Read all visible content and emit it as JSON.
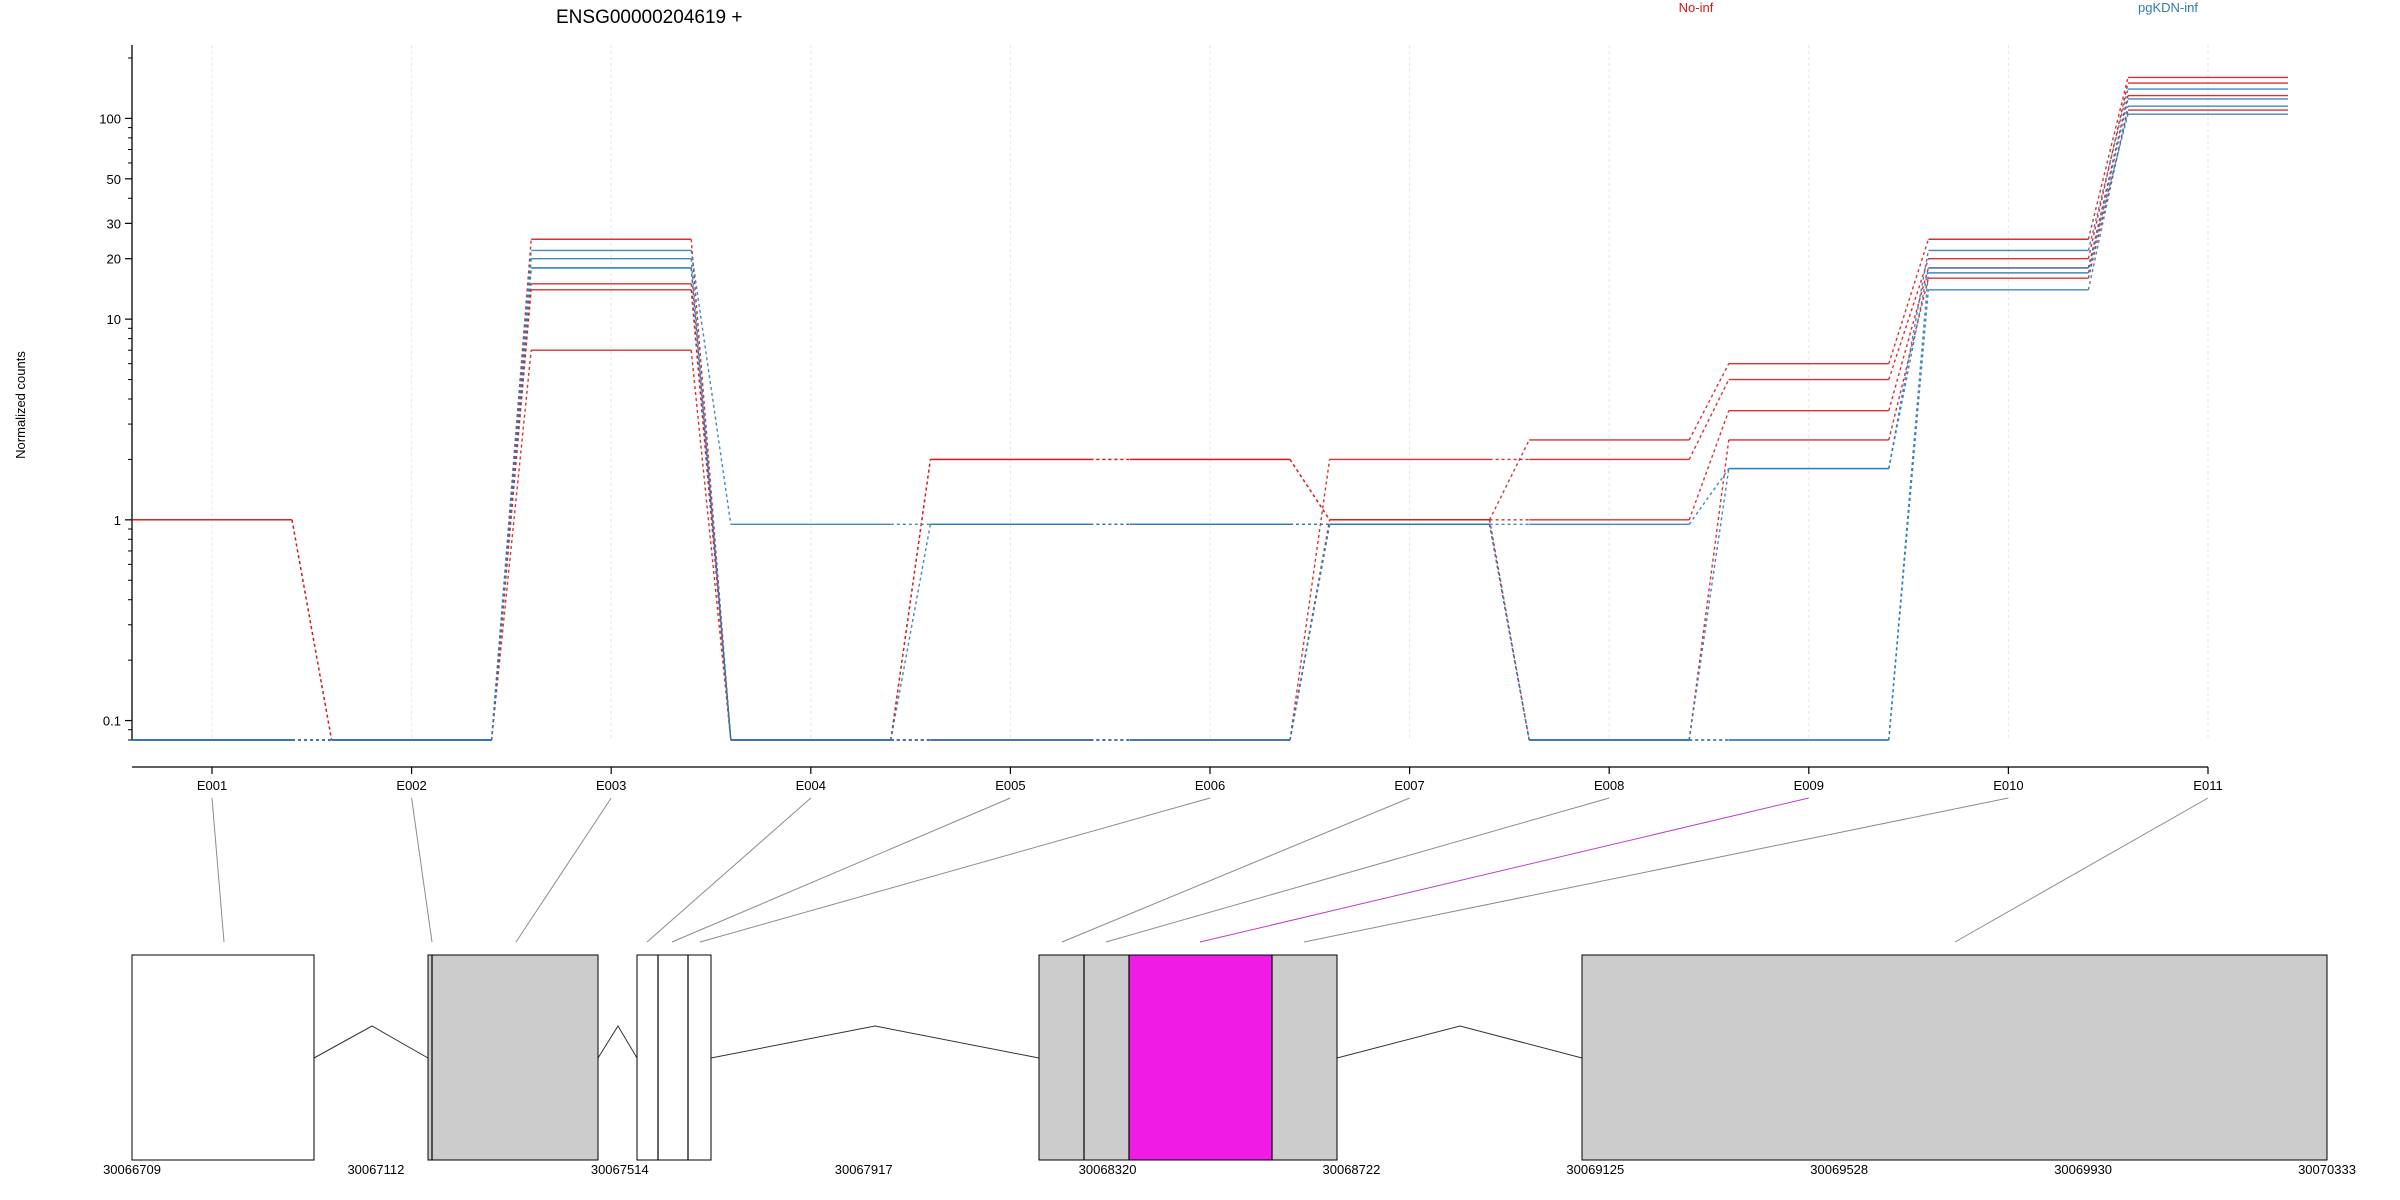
{
  "chart_data": {
    "type": "line",
    "title": "ENSG00000204619 +",
    "ylabel": "Normalized counts",
    "y_scale": "log",
    "ylim": [
      0.08,
      200
    ],
    "y_ticks": [
      {
        "value": 0.1,
        "label": "0.1"
      },
      {
        "value": 1,
        "label": "1"
      },
      {
        "value": 10,
        "label": "10"
      },
      {
        "value": 20,
        "label": "20"
      },
      {
        "value": 30,
        "label": "30"
      },
      {
        "value": 50,
        "label": "50"
      },
      {
        "value": 100,
        "label": "100"
      }
    ],
    "grid": "vertical",
    "categories": [
      "E001",
      "E002",
      "E003",
      "E004",
      "E005",
      "E006",
      "E007",
      "E008",
      "E009",
      "E010",
      "E011"
    ],
    "legend": [
      {
        "label": "No-inf",
        "color": "#d7191c"
      },
      {
        "label": "pgKDN-inf",
        "color": "#2c7bb6"
      }
    ],
    "series": [
      {
        "group": "No-inf",
        "color": "#d7191c",
        "values": [
          1,
          0.08,
          25,
          0.08,
          2,
          2,
          1,
          2.5,
          6,
          25,
          160
        ]
      },
      {
        "group": "No-inf",
        "color": "#d7191c",
        "values": [
          1,
          0.08,
          15,
          0.08,
          0.08,
          0.08,
          2,
          2,
          5,
          20,
          150
        ]
      },
      {
        "group": "No-inf",
        "color": "#d7191c",
        "values": [
          0.08,
          0.08,
          14,
          0.08,
          2,
          2,
          1,
          1,
          3.5,
          18,
          130
        ]
      },
      {
        "group": "No-inf",
        "color": "#d7191c",
        "values": [
          0.08,
          0.08,
          7,
          0.08,
          0.08,
          0.08,
          1,
          0.08,
          2.5,
          16,
          110
        ]
      },
      {
        "group": "pgKDN-inf",
        "color": "#2c7bb6",
        "values": [
          0.08,
          0.08,
          22,
          0.95,
          0.95,
          0.95,
          0.95,
          0.95,
          1.8,
          22,
          140
        ]
      },
      {
        "group": "pgKDN-inf",
        "color": "#2c7bb6",
        "values": [
          0.08,
          0.08,
          20,
          0.08,
          0.08,
          0.08,
          0.95,
          0.08,
          0.08,
          17,
          125
        ]
      },
      {
        "group": "pgKDN-inf",
        "color": "#2c7bb6",
        "values": [
          0.08,
          0.08,
          18,
          0.08,
          0.95,
          0.95,
          0.95,
          0.08,
          0.08,
          14,
          115
        ]
      },
      {
        "group": "pgKDN-inf",
        "color": "#2c7bb6",
        "values": [
          0.08,
          0.08,
          18,
          0.08,
          0.08,
          0.08,
          0.95,
          0.08,
          1.8,
          18,
          105
        ]
      }
    ],
    "gene_model": {
      "coordinate_ticks": [
        "30066709",
        "30067112",
        "30067514",
        "30067917",
        "30068320",
        "30068722",
        "30069125",
        "30069528",
        "30069930",
        "30070333"
      ],
      "highlight_color": "#f01ce6",
      "highlighted_exon": "E009"
    }
  }
}
